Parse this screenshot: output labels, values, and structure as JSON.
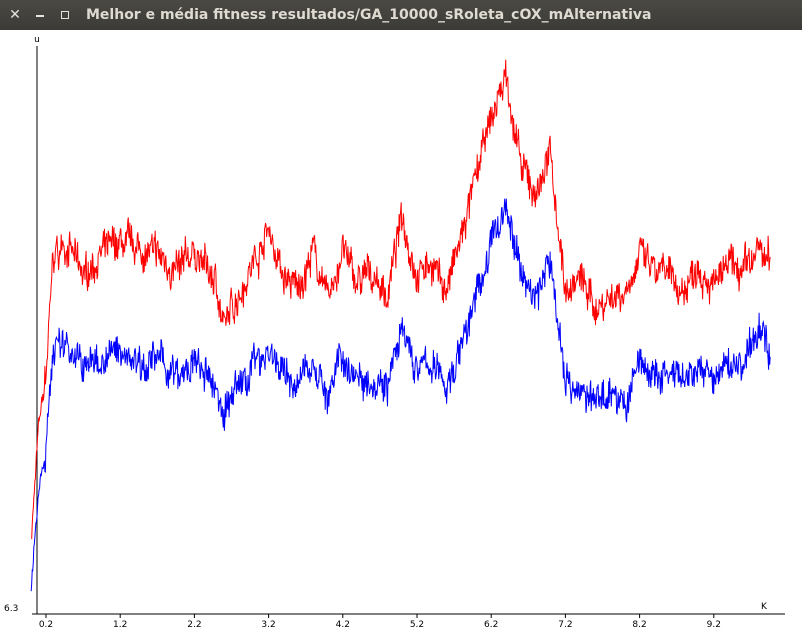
{
  "window": {
    "title": "Melhor e média fitness resultados/GA_10000_sRoleta_cOX_mAlternativa",
    "buttons": {
      "close": "close-icon",
      "minimize": "minimize-icon",
      "maximize": "maximize-icon"
    }
  },
  "chart_data": {
    "type": "line",
    "title": "",
    "ylabel": "u",
    "xlabel": "K",
    "y_min_label": "6.3",
    "x_ticks": [
      "0.2",
      "1.2",
      "2.2",
      "3.2",
      "4.2",
      "5.2",
      "6.2",
      "7.2",
      "8.2",
      "9.2"
    ],
    "grid": false,
    "series": [
      {
        "color": "#ff0000",
        "x": [
          0.0,
          0.1,
          0.2,
          0.3,
          0.5,
          0.7,
          0.9,
          1.2,
          1.5,
          1.8,
          2.0,
          2.2,
          2.5,
          2.6,
          2.8,
          3.0,
          3.2,
          3.4,
          3.6,
          3.8,
          4.0,
          4.2,
          4.4,
          4.6,
          4.8,
          5.0,
          5.2,
          5.4,
          5.6,
          5.8,
          6.0,
          6.2,
          6.4,
          6.6,
          6.8,
          7.0,
          7.2,
          7.4,
          7.6,
          7.8,
          8.0,
          8.2,
          8.4,
          8.6,
          8.8,
          9.0,
          9.2,
          9.4,
          9.6,
          9.8,
          9.96
        ],
        "values": [
          0.13,
          0.33,
          0.42,
          0.63,
          0.65,
          0.59,
          0.63,
          0.65,
          0.64,
          0.62,
          0.6,
          0.64,
          0.58,
          0.5,
          0.57,
          0.62,
          0.68,
          0.59,
          0.57,
          0.64,
          0.55,
          0.64,
          0.58,
          0.6,
          0.56,
          0.7,
          0.6,
          0.62,
          0.57,
          0.66,
          0.77,
          0.87,
          0.95,
          0.78,
          0.74,
          0.81,
          0.57,
          0.59,
          0.54,
          0.56,
          0.57,
          0.63,
          0.6,
          0.59,
          0.57,
          0.62,
          0.58,
          0.61,
          0.6,
          0.64,
          0.62
        ]
      },
      {
        "color": "#0000ff",
        "x": [
          0.0,
          0.1,
          0.2,
          0.3,
          0.5,
          0.7,
          0.9,
          1.2,
          1.5,
          1.8,
          2.0,
          2.2,
          2.5,
          2.6,
          2.8,
          3.0,
          3.2,
          3.4,
          3.6,
          3.8,
          4.0,
          4.2,
          4.4,
          4.6,
          4.8,
          5.0,
          5.2,
          5.4,
          5.6,
          5.8,
          6.0,
          6.2,
          6.4,
          6.6,
          6.8,
          7.0,
          7.2,
          7.4,
          7.6,
          7.8,
          8.0,
          8.2,
          8.4,
          8.6,
          8.8,
          9.0,
          9.2,
          9.4,
          9.6,
          9.8,
          9.96
        ],
        "values": [
          0.05,
          0.22,
          0.3,
          0.47,
          0.48,
          0.43,
          0.45,
          0.46,
          0.45,
          0.44,
          0.41,
          0.44,
          0.39,
          0.36,
          0.4,
          0.44,
          0.47,
          0.42,
          0.4,
          0.45,
          0.38,
          0.45,
          0.42,
          0.42,
          0.41,
          0.49,
          0.43,
          0.44,
          0.4,
          0.47,
          0.56,
          0.65,
          0.72,
          0.6,
          0.56,
          0.62,
          0.42,
          0.39,
          0.37,
          0.4,
          0.36,
          0.45,
          0.41,
          0.42,
          0.4,
          0.43,
          0.41,
          0.44,
          0.44,
          0.5,
          0.47
        ]
      }
    ]
  }
}
